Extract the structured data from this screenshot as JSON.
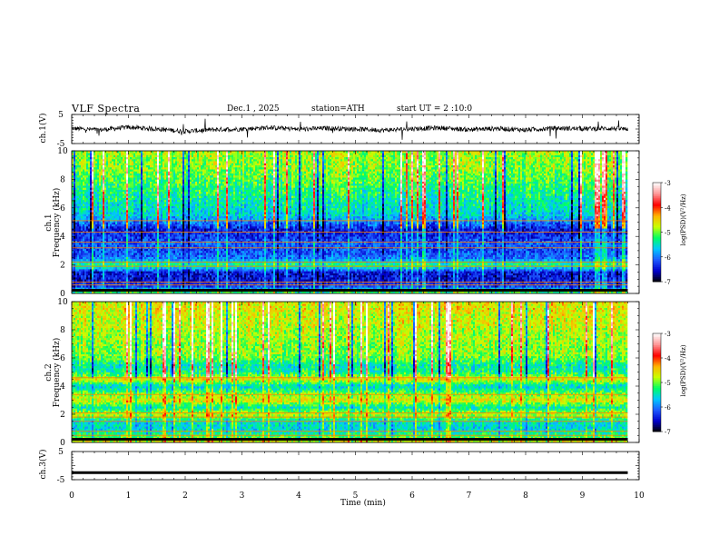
{
  "header": {
    "title": "VLF Spectra",
    "date": "Dec.1 , 2025",
    "station": "station=ATH",
    "start": "start UT = 2 :10:0"
  },
  "chart_data": [
    {
      "id": "ch1-waveform",
      "type": "line",
      "ylabel": "ch.1(V)",
      "ylim": [
        -5,
        5
      ],
      "yticks": [
        "5",
        "-5"
      ],
      "x": [
        0,
        0.5,
        1,
        1.5,
        2,
        2.5,
        3,
        3.5,
        4,
        4.5,
        5,
        5.5,
        6,
        6.5,
        7,
        7.5,
        8,
        8.5,
        9,
        9.5,
        9.8
      ],
      "values": [
        0.2,
        -0.3,
        0.6,
        0.0,
        -0.8,
        -0.2,
        0.0,
        0.5,
        -0.1,
        0.3,
        0.0,
        -0.4,
        0.1,
        0.4,
        -0.2,
        0.2,
        -0.3,
        0.3,
        0.1,
        0.2,
        0.0
      ]
    },
    {
      "id": "ch1-spectrogram",
      "type": "heatmap",
      "ylabel_line1": "ch.1",
      "ylabel_line2": "Frequency (kHz)",
      "ylim": [
        0,
        10
      ],
      "yticks": [
        "0",
        "2",
        "4",
        "6",
        "8",
        "10"
      ],
      "band_profile": {
        "freq_khz": [
          0,
          0.5,
          1,
          1.5,
          2,
          2.5,
          3,
          3.5,
          4,
          4.5,
          5,
          5.5,
          6,
          6.5,
          7,
          7.5,
          8,
          8.5,
          9,
          9.5,
          10
        ],
        "log_psd": [
          -5.0,
          -6.2,
          -6.5,
          -6.4,
          -5.2,
          -6.0,
          -6.2,
          -6.1,
          -6.3,
          -6.4,
          -6.0,
          -5.6,
          -5.5,
          -5.4,
          -5.3,
          -5.2,
          -5.1,
          -5.0,
          -4.9,
          -4.9,
          -4.8
        ]
      },
      "colorbar": {
        "label": "log(PSD)(V²/Hz)",
        "min": -7,
        "max": -3,
        "ticks": [
          "-3",
          "-4",
          "-5",
          "-6",
          "-7"
        ]
      }
    },
    {
      "id": "ch2-spectrogram",
      "type": "heatmap",
      "ylabel_line1": "ch.2",
      "ylabel_line2": "Frequency (kHz)",
      "ylim": [
        0,
        10
      ],
      "yticks": [
        "0",
        "2",
        "4",
        "6",
        "8",
        "10"
      ],
      "band_profile": {
        "freq_khz": [
          0,
          0.5,
          1,
          1.5,
          2,
          2.5,
          3,
          3.5,
          4,
          4.5,
          5,
          5.5,
          6,
          6.5,
          7,
          7.5,
          8,
          8.5,
          9,
          9.5,
          10
        ],
        "log_psd": [
          -4.6,
          -5.2,
          -5.6,
          -5.5,
          -4.7,
          -5.4,
          -4.6,
          -5.0,
          -5.6,
          -4.6,
          -5.3,
          -5.4,
          -5.0,
          -4.9,
          -4.9,
          -4.8,
          -4.8,
          -4.7,
          -4.7,
          -4.6,
          -4.6
        ]
      },
      "colorbar": {
        "label": "log(PSD)(V²/Hz)",
        "min": -7,
        "max": -3,
        "ticks": [
          "-3",
          "-4",
          "-5",
          "-6",
          "-7"
        ]
      }
    },
    {
      "id": "ch3-waveform",
      "type": "line",
      "ylabel": "ch.3(V)",
      "ylim": [
        -5,
        5
      ],
      "yticks": [
        "5",
        "-5"
      ],
      "x": [
        0,
        9.8
      ],
      "values": [
        -2.5,
        -2.5
      ]
    }
  ],
  "xaxis": {
    "label": "Time (min)",
    "range": [
      0,
      10
    ],
    "ticks": [
      "0",
      "1",
      "2",
      "3",
      "4",
      "5",
      "6",
      "7",
      "8",
      "9",
      "10"
    ]
  },
  "colors": {
    "colormap": [
      "#000000",
      "#0000cc",
      "#1e5aff",
      "#00c8ff",
      "#00ff64",
      "#c8ff00",
      "#ffb400",
      "#ff0000",
      "#ff9696",
      "#ffffff"
    ]
  }
}
